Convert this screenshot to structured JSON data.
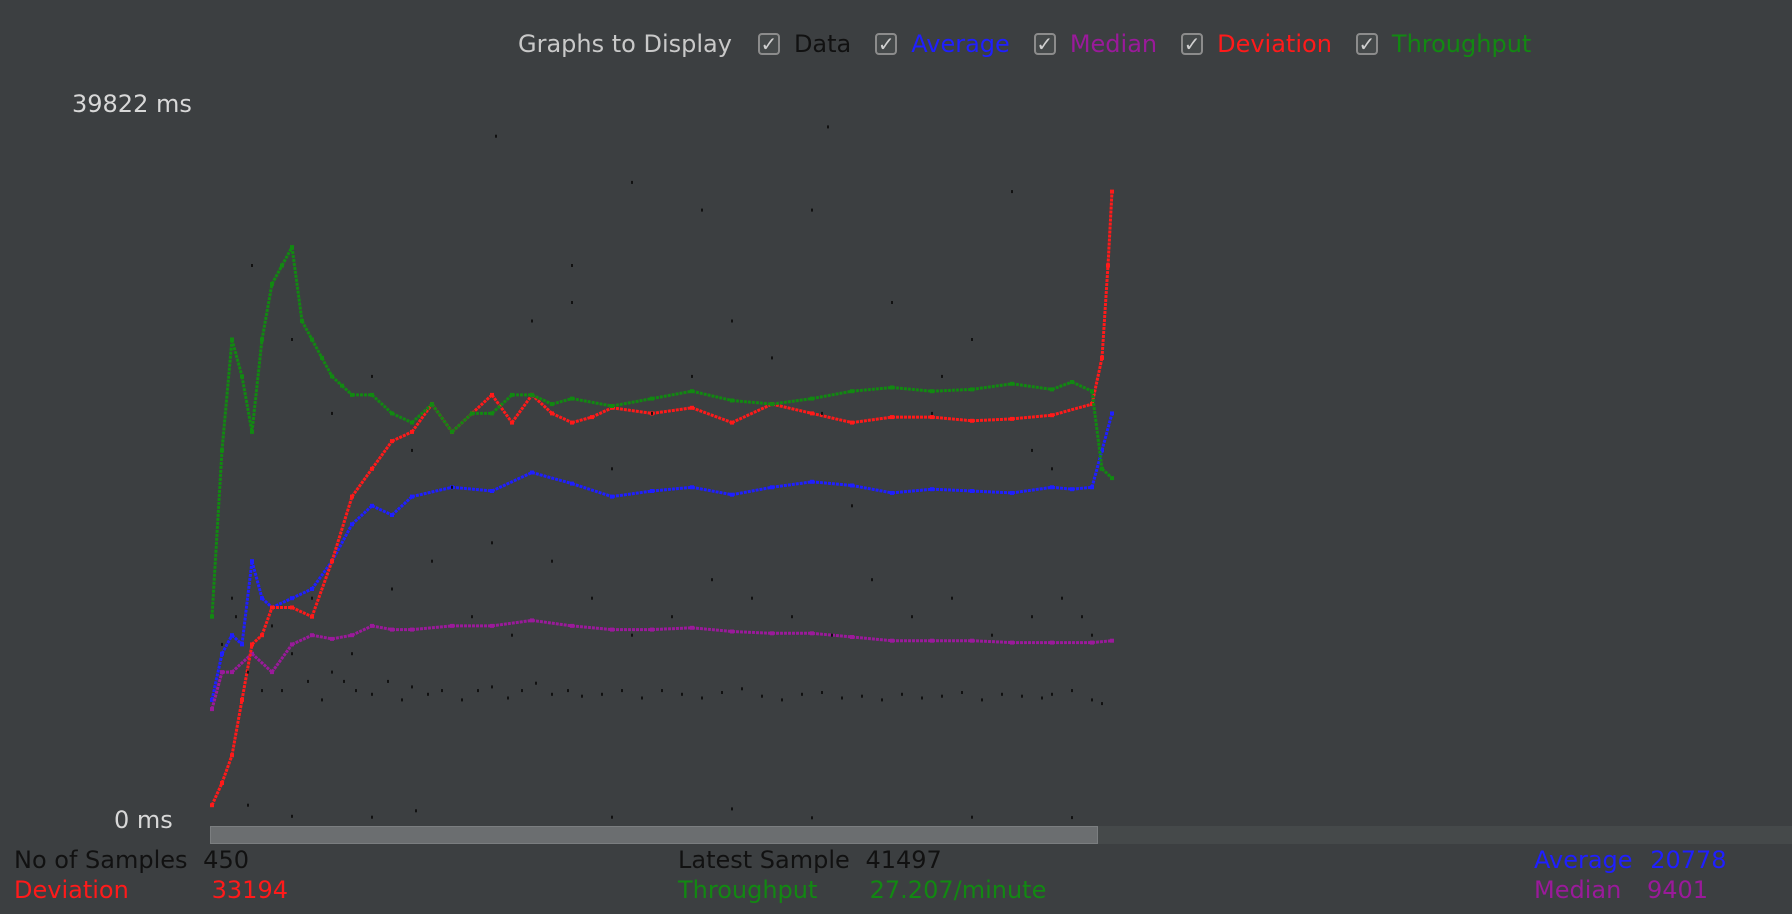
{
  "legend": {
    "title": "Graphs to Display",
    "items": [
      {
        "label": "Data",
        "color": "#111111",
        "checked": true
      },
      {
        "label": "Average",
        "color": "#1f1fff",
        "checked": true
      },
      {
        "label": "Median",
        "color": "#9a1a9a",
        "checked": true
      },
      {
        "label": "Deviation",
        "color": "#ff1a1a",
        "checked": true
      },
      {
        "label": "Throughput",
        "color": "#128812",
        "checked": true
      }
    ]
  },
  "stats": {
    "samples_label": "No of Samples",
    "samples_value": "450",
    "deviation_label": "Deviation",
    "deviation_value": "33194",
    "latest_label": "Latest Sample",
    "latest_value": "41497",
    "throughput_label": "Throughput",
    "throughput_value": "27.207/minute",
    "average_label": "Average",
    "average_value": "20778",
    "median_label": "Median",
    "median_value": "9401"
  },
  "chart_data": {
    "type": "scatter",
    "title": "",
    "y_top_label": "39822  ms",
    "y_bottom_label": "0  ms",
    "ylim": [
      0,
      39822
    ],
    "xlim": [
      0,
      450
    ],
    "grid": false,
    "legend_position": "top-center",
    "series": [
      {
        "name": "Average",
        "color": "#1f1fff",
        "x": [
          0,
          5,
          10,
          15,
          20,
          25,
          30,
          40,
          50,
          60,
          70,
          80,
          90,
          100,
          120,
          140,
          160,
          180,
          200,
          220,
          240,
          260,
          280,
          300,
          320,
          340,
          360,
          380,
          400,
          420,
          430,
          440,
          445,
          450
        ],
        "y": [
          6500,
          9000,
          10000,
          9500,
          14000,
          12000,
          11500,
          12000,
          12500,
          14000,
          16000,
          17000,
          16500,
          17500,
          18000,
          17800,
          18800,
          18200,
          17500,
          17800,
          18000,
          17600,
          18000,
          18300,
          18100,
          17700,
          17900,
          17800,
          17700,
          18000,
          17900,
          18000,
          20000,
          22000
        ]
      },
      {
        "name": "Median",
        "color": "#9a1a9a",
        "x": [
          0,
          5,
          10,
          20,
          30,
          40,
          50,
          60,
          70,
          80,
          90,
          100,
          120,
          140,
          160,
          180,
          200,
          220,
          240,
          260,
          280,
          300,
          320,
          340,
          360,
          380,
          400,
          420,
          440,
          450
        ],
        "y": [
          6000,
          8000,
          8000,
          9000,
          8000,
          9500,
          10000,
          9800,
          10000,
          10500,
          10300,
          10300,
          10500,
          10500,
          10800,
          10500,
          10300,
          10300,
          10400,
          10200,
          10100,
          10100,
          9900,
          9700,
          9700,
          9700,
          9600,
          9600,
          9600,
          9700
        ]
      },
      {
        "name": "Deviation",
        "color": "#ff1a1a",
        "x": [
          0,
          5,
          10,
          15,
          20,
          25,
          30,
          40,
          50,
          60,
          70,
          80,
          90,
          100,
          110,
          120,
          130,
          140,
          150,
          160,
          170,
          180,
          190,
          200,
          220,
          240,
          260,
          280,
          300,
          320,
          340,
          360,
          380,
          400,
          420,
          440,
          445,
          448,
          450
        ],
        "y": [
          800,
          2000,
          3500,
          6500,
          9500,
          10000,
          11500,
          11500,
          11000,
          14000,
          17500,
          19000,
          20500,
          21000,
          22500,
          21000,
          22000,
          23000,
          21500,
          23000,
          22000,
          21500,
          21800,
          22300,
          22000,
          22300,
          21500,
          22500,
          22000,
          21500,
          21800,
          21800,
          21600,
          21700,
          21900,
          22500,
          25000,
          30000,
          34000
        ]
      },
      {
        "name": "Throughput",
        "color": "#128812",
        "x": [
          0,
          5,
          10,
          15,
          20,
          25,
          30,
          35,
          40,
          45,
          50,
          55,
          60,
          65,
          70,
          80,
          90,
          100,
          110,
          120,
          130,
          140,
          150,
          160,
          170,
          180,
          200,
          220,
          240,
          260,
          280,
          300,
          320,
          340,
          360,
          380,
          400,
          420,
          430,
          440,
          445,
          450
        ],
        "y": [
          11000,
          20000,
          26000,
          24000,
          21000,
          26000,
          29000,
          30000,
          31000,
          27000,
          26000,
          25000,
          24000,
          23500,
          23000,
          23000,
          22000,
          21500,
          22500,
          21000,
          22000,
          22000,
          23000,
          23000,
          22500,
          22800,
          22400,
          22800,
          23200,
          22700,
          22500,
          22800,
          23200,
          23400,
          23200,
          23300,
          23600,
          23300,
          23700,
          23200,
          19000,
          18500
        ]
      },
      {
        "name": "Data",
        "color": "#111111",
        "x": [
          5,
          12,
          18,
          25,
          35,
          40,
          48,
          55,
          60,
          66,
          72,
          80,
          88,
          95,
          100,
          108,
          115,
          125,
          133,
          140,
          148,
          155,
          162,
          170,
          178,
          185,
          195,
          205,
          215,
          225,
          235,
          245,
          255,
          265,
          275,
          285,
          295,
          305,
          315,
          325,
          335,
          345,
          355,
          365,
          375,
          385,
          395,
          405,
          415,
          420,
          430,
          440,
          445,
          10,
          30,
          50,
          70,
          90,
          110,
          130,
          150,
          170,
          190,
          210,
          230,
          250,
          270,
          290,
          310,
          330,
          350,
          370,
          390,
          410,
          425,
          435,
          20,
          40,
          60,
          80,
          100,
          120,
          140,
          160,
          180,
          200,
          220,
          240,
          260,
          280,
          300,
          320,
          340,
          360,
          380,
          400,
          420,
          440,
          142,
          180,
          210,
          245,
          308,
          305,
          365,
          410,
          18,
          102,
          260,
          40,
          80,
          200,
          300,
          380,
          430
        ],
        "y": [
          9500,
          11000,
          8000,
          7000,
          7000,
          9000,
          7500,
          6500,
          8000,
          7500,
          7000,
          6800,
          7500,
          6500,
          7200,
          6800,
          7000,
          6500,
          7000,
          7200,
          6600,
          7000,
          7400,
          6800,
          7000,
          6700,
          6800,
          7000,
          6600,
          7000,
          6800,
          6600,
          6900,
          7100,
          6700,
          6500,
          6800,
          6900,
          6600,
          6700,
          6500,
          6800,
          6600,
          6700,
          6900,
          6500,
          6800,
          6700,
          6600,
          6800,
          7000,
          6500,
          6300,
          12000,
          10500,
          12000,
          9000,
          12500,
          14000,
          11000,
          10000,
          14000,
          12000,
          10000,
          11000,
          13000,
          12000,
          11000,
          10000,
          13000,
          11000,
          12000,
          10000,
          11000,
          12000,
          11000,
          30000,
          26000,
          22000,
          24000,
          20000,
          18000,
          15000,
          27000,
          30000,
          19000,
          22000,
          24000,
          27000,
          25000,
          33000,
          17000,
          28000,
          22000,
          26000,
          34000,
          19000,
          10000,
          37000,
          28000,
          34500,
          33000,
          37500,
          22000,
          24000,
          20000,
          800,
          500,
          600,
          200,
          150,
          150,
          120,
          150,
          130
        ]
      }
    ]
  }
}
